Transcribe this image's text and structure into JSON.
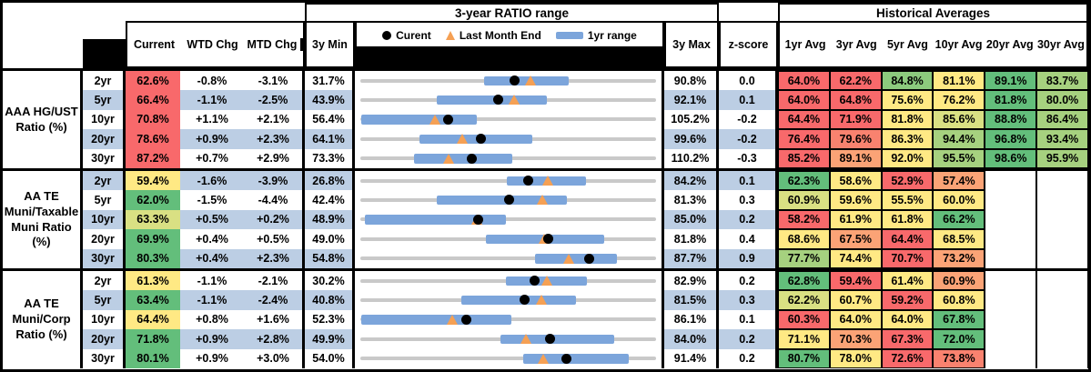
{
  "titles": {
    "range": "3-year RATIO range",
    "historical": "Historical Averages"
  },
  "columns": {
    "current": "Current",
    "wtd": "WTD Chg",
    "mtd": "MTD Chg",
    "min3y": "3y Min",
    "max3y": "3y Max",
    "zscore": "z-score",
    "avgs": [
      "1yr Avg",
      "3yr Avg",
      "5yr Avg",
      "10yr Avg",
      "20yr Avg",
      "30yr Avg"
    ]
  },
  "legend": {
    "current": "Curent",
    "last_month": "Last Month End",
    "range": "1yr range"
  },
  "palette": {
    "red": "#F8696B",
    "redOrange": "#F9826F",
    "orange": "#FBA376",
    "yellow": "#FFE984",
    "yellowGreen": "#D9E083",
    "lightGreen": "#A6D17F",
    "medGreen": "#8CCA7D",
    "green": "#63BE7B",
    "rowBlue": "#BCCEE4",
    "rowWhite": "#FFFFFF",
    "barBlue": "#7CA5DB",
    "trackGray": "#C9C9C9",
    "triOrange": "#F5A054",
    "dotBlack": "#000000"
  },
  "groups": [
    {
      "label": "AAA HG/UST\nRatio (%)",
      "rows": [
        {
          "tenor": "2yr",
          "current": "62.6%",
          "cc": "red",
          "wtd": "-0.8%",
          "mtd": "-3.1%",
          "min": "31.7%",
          "max": "90.8%",
          "z": "0.0",
          "range": {
            "min": 31.7,
            "max": 90.8,
            "lo": 56.4,
            "hi": 73.4,
            "cur": 62.6,
            "last": 65.7
          },
          "avgs": [
            [
              "64.0%",
              "red"
            ],
            [
              "62.2%",
              "red"
            ],
            [
              "84.8%",
              "medGreen"
            ],
            [
              "81.1%",
              "yellow"
            ],
            [
              "89.1%",
              "green"
            ],
            [
              "83.7%",
              "lightGreen"
            ]
          ]
        },
        {
          "tenor": "5yr",
          "current": "66.4%",
          "cc": "red",
          "wtd": "-1.1%",
          "mtd": "-2.5%",
          "min": "43.9%",
          "max": "92.1%",
          "z": "0.1",
          "range": {
            "min": 43.9,
            "max": 92.1,
            "lo": 56.3,
            "hi": 74.3,
            "cur": 66.4,
            "last": 68.9
          },
          "avgs": [
            [
              "64.0%",
              "red"
            ],
            [
              "64.8%",
              "red"
            ],
            [
              "75.6%",
              "yellow"
            ],
            [
              "76.2%",
              "yellow"
            ],
            [
              "81.8%",
              "green"
            ],
            [
              "80.0%",
              "lightGreen"
            ]
          ]
        },
        {
          "tenor": "10yr",
          "current": "70.8%",
          "cc": "red",
          "wtd": "+1.1%",
          "mtd": "+2.1%",
          "min": "56.4%",
          "max": "105.2%",
          "z": "-0.2",
          "range": {
            "min": 56.4,
            "max": 105.2,
            "lo": 56.4,
            "hi": 75.6,
            "cur": 70.8,
            "last": 68.7
          },
          "avgs": [
            [
              "64.4%",
              "red"
            ],
            [
              "71.9%",
              "red"
            ],
            [
              "81.8%",
              "yellow"
            ],
            [
              "85.6%",
              "yellowGreen"
            ],
            [
              "88.8%",
              "green"
            ],
            [
              "86.4%",
              "lightGreen"
            ]
          ]
        },
        {
          "tenor": "20yr",
          "current": "78.6%",
          "cc": "red",
          "wtd": "+0.9%",
          "mtd": "+2.3%",
          "min": "64.1%",
          "max": "99.6%",
          "z": "-0.2",
          "range": {
            "min": 64.1,
            "max": 99.6,
            "lo": 71.2,
            "hi": 84.8,
            "cur": 78.6,
            "last": 76.3
          },
          "avgs": [
            [
              "76.4%",
              "red"
            ],
            [
              "79.6%",
              "redOrange"
            ],
            [
              "86.3%",
              "yellow"
            ],
            [
              "94.4%",
              "lightGreen"
            ],
            [
              "96.8%",
              "green"
            ],
            [
              "93.4%",
              "lightGreen"
            ]
          ]
        },
        {
          "tenor": "30yr",
          "current": "87.2%",
          "cc": "red",
          "wtd": "+0.7%",
          "mtd": "+2.9%",
          "min": "73.3%",
          "max": "110.2%",
          "z": "-0.3",
          "range": {
            "min": 73.3,
            "max": 110.2,
            "lo": 79.9,
            "hi": 92.3,
            "cur": 87.2,
            "last": 84.3
          },
          "avgs": [
            [
              "85.2%",
              "red"
            ],
            [
              "89.1%",
              "orange"
            ],
            [
              "92.0%",
              "yellow"
            ],
            [
              "95.5%",
              "lightGreen"
            ],
            [
              "98.6%",
              "green"
            ],
            [
              "95.9%",
              "lightGreen"
            ]
          ]
        }
      ]
    },
    {
      "label": "AA TE\nMuni/Taxable\nMuni Ratio\n(%)",
      "rows": [
        {
          "tenor": "2yr",
          "current": "59.4%",
          "cc": "yellow",
          "wtd": "-1.6%",
          "mtd": "-3.9%",
          "min": "26.8%",
          "max": "84.2%",
          "z": "0.1",
          "range": {
            "min": 26.8,
            "max": 84.2,
            "lo": 55.2,
            "hi": 70.7,
            "cur": 59.4,
            "last": 63.3
          },
          "avgs": [
            [
              "62.3%",
              "green"
            ],
            [
              "58.6%",
              "yellow"
            ],
            [
              "52.9%",
              "red"
            ],
            [
              "57.4%",
              "orange"
            ],
            null,
            null
          ]
        },
        {
          "tenor": "5yr",
          "current": "62.0%",
          "cc": "green",
          "wtd": "-1.5%",
          "mtd": "-4.4%",
          "min": "42.4%",
          "max": "81.3%",
          "z": "0.3",
          "range": {
            "min": 42.4,
            "max": 81.3,
            "lo": 52.4,
            "hi": 69.6,
            "cur": 62.0,
            "last": 66.4
          },
          "avgs": [
            [
              "60.9%",
              "yellowGreen"
            ],
            [
              "59.6%",
              "yellow"
            ],
            [
              "55.5%",
              "yellow"
            ],
            [
              "60.0%",
              "yellow"
            ],
            null,
            null
          ]
        },
        {
          "tenor": "10yr",
          "current": "63.3%",
          "cc": "yellowGreen",
          "wtd": "+0.5%",
          "mtd": "+0.2%",
          "min": "48.9%",
          "max": "85.0%",
          "z": "0.2",
          "range": {
            "min": 48.9,
            "max": 85.0,
            "lo": 49.4,
            "hi": 66.7,
            "cur": 63.3,
            "last": 63.1
          },
          "avgs": [
            [
              "58.2%",
              "red"
            ],
            [
              "61.9%",
              "yellow"
            ],
            [
              "61.8%",
              "yellow"
            ],
            [
              "66.2%",
              "green"
            ],
            null,
            null
          ]
        },
        {
          "tenor": "20yr",
          "current": "69.9%",
          "cc": "green",
          "wtd": "+0.4%",
          "mtd": "+0.5%",
          "min": "49.0%",
          "max": "81.8%",
          "z": "0.4",
          "range": {
            "min": 49.0,
            "max": 81.8,
            "lo": 62.9,
            "hi": 76.1,
            "cur": 69.9,
            "last": 69.4
          },
          "avgs": [
            [
              "68.6%",
              "yellow"
            ],
            [
              "67.5%",
              "orange"
            ],
            [
              "64.4%",
              "red"
            ],
            [
              "68.5%",
              "yellow"
            ],
            null,
            null
          ]
        },
        {
          "tenor": "30yr",
          "current": "80.3%",
          "cc": "green",
          "wtd": "+0.4%",
          "mtd": "+2.3%",
          "min": "54.8%",
          "max": "87.7%",
          "z": "0.9",
          "range": {
            "min": 54.8,
            "max": 87.7,
            "lo": 74.3,
            "hi": 83.4,
            "cur": 80.3,
            "last": 78.0
          },
          "avgs": [
            [
              "77.7%",
              "lightGreen"
            ],
            [
              "74.4%",
              "yellow"
            ],
            [
              "70.7%",
              "red"
            ],
            [
              "73.2%",
              "orange"
            ],
            null,
            null
          ]
        }
      ]
    },
    {
      "label": "AA TE\nMuni/Corp\nRatio (%)",
      "rows": [
        {
          "tenor": "2yr",
          "current": "61.3%",
          "cc": "yellow",
          "wtd": "-1.1%",
          "mtd": "-2.1%",
          "min": "30.2%",
          "max": "82.9%",
          "z": "0.2",
          "range": {
            "min": 30.2,
            "max": 82.9,
            "lo": 56.2,
            "hi": 70.6,
            "cur": 61.3,
            "last": 63.4
          },
          "avgs": [
            [
              "62.8%",
              "green"
            ],
            [
              "59.4%",
              "red"
            ],
            [
              "61.4%",
              "yellow"
            ],
            [
              "60.9%",
              "orange"
            ],
            null,
            null
          ]
        },
        {
          "tenor": "5yr",
          "current": "63.4%",
          "cc": "green",
          "wtd": "-1.1%",
          "mtd": "-2.4%",
          "min": "40.8%",
          "max": "81.5%",
          "z": "0.3",
          "range": {
            "min": 40.8,
            "max": 81.5,
            "lo": 54.7,
            "hi": 70.5,
            "cur": 63.4,
            "last": 65.8
          },
          "avgs": [
            [
              "62.2%",
              "yellowGreen"
            ],
            [
              "60.7%",
              "yellow"
            ],
            [
              "59.2%",
              "red"
            ],
            [
              "60.8%",
              "yellow"
            ],
            null,
            null
          ]
        },
        {
          "tenor": "10yr",
          "current": "64.4%",
          "cc": "yellow",
          "wtd": "+0.8%",
          "mtd": "+1.6%",
          "min": "52.3%",
          "max": "86.1%",
          "z": "0.1",
          "range": {
            "min": 52.3,
            "max": 86.1,
            "lo": 52.3,
            "hi": 69.6,
            "cur": 64.4,
            "last": 62.8
          },
          "avgs": [
            [
              "60.3%",
              "red"
            ],
            [
              "64.0%",
              "yellow"
            ],
            [
              "64.0%",
              "yellow"
            ],
            [
              "67.8%",
              "green"
            ],
            null,
            null
          ]
        },
        {
          "tenor": "20yr",
          "current": "71.8%",
          "cc": "green",
          "wtd": "+0.9%",
          "mtd": "+2.8%",
          "min": "49.9%",
          "max": "84.0%",
          "z": "0.2",
          "range": {
            "min": 49.9,
            "max": 84.0,
            "lo": 66.1,
            "hi": 79.2,
            "cur": 71.8,
            "last": 69.0
          },
          "avgs": [
            [
              "71.1%",
              "yellow"
            ],
            [
              "70.3%",
              "orange"
            ],
            [
              "67.3%",
              "red"
            ],
            [
              "72.0%",
              "green"
            ],
            null,
            null
          ]
        },
        {
          "tenor": "30yr",
          "current": "80.1%",
          "cc": "green",
          "wtd": "+0.9%",
          "mtd": "+3.0%",
          "min": "54.0%",
          "max": "91.4%",
          "z": "0.2",
          "range": {
            "min": 54.0,
            "max": 91.4,
            "lo": 74.6,
            "hi": 88.0,
            "cur": 80.1,
            "last": 77.1
          },
          "avgs": [
            [
              "80.7%",
              "green"
            ],
            [
              "78.0%",
              "yellow"
            ],
            [
              "72.6%",
              "red"
            ],
            [
              "73.8%",
              "redOrange"
            ],
            null,
            null
          ]
        }
      ]
    }
  ],
  "chart_data": [
    {
      "type": "table",
      "title": "AAA HG/UST Ratio (%)",
      "tenors": [
        "2yr",
        "5yr",
        "10yr",
        "20yr",
        "30yr"
      ],
      "current": [
        62.6,
        66.4,
        70.8,
        78.6,
        87.2
      ],
      "wtd_chg": [
        -0.8,
        -1.1,
        1.1,
        0.9,
        0.7
      ],
      "mtd_chg": [
        -3.1,
        -2.5,
        2.1,
        2.3,
        2.9
      ],
      "min_3y": [
        31.7,
        43.9,
        56.4,
        64.1,
        73.3
      ],
      "max_3y": [
        90.8,
        92.1,
        105.2,
        99.6,
        110.2
      ],
      "z_score": [
        0.0,
        0.1,
        -0.2,
        -0.2,
        -0.3
      ],
      "range_1yr_lo": [
        56.4,
        56.3,
        56.4,
        71.2,
        79.9
      ],
      "range_1yr_hi": [
        73.4,
        74.3,
        75.6,
        84.8,
        92.3
      ],
      "last_month_end": [
        65.7,
        68.9,
        68.7,
        76.3,
        84.3
      ],
      "avg_1yr": [
        64.0,
        64.0,
        64.4,
        76.4,
        85.2
      ],
      "avg_3yr": [
        62.2,
        64.8,
        71.9,
        79.6,
        89.1
      ],
      "avg_5yr": [
        84.8,
        75.6,
        81.8,
        86.3,
        92.0
      ],
      "avg_10yr": [
        81.1,
        76.2,
        85.6,
        94.4,
        95.5
      ],
      "avg_20yr": [
        89.1,
        81.8,
        88.8,
        96.8,
        98.6
      ],
      "avg_30yr": [
        83.7,
        80.0,
        86.4,
        93.4,
        95.9
      ]
    },
    {
      "type": "table",
      "title": "AA TE Muni/Taxable Muni Ratio (%)",
      "tenors": [
        "2yr",
        "5yr",
        "10yr",
        "20yr",
        "30yr"
      ],
      "current": [
        59.4,
        62.0,
        63.3,
        69.9,
        80.3
      ],
      "wtd_chg": [
        -1.6,
        -1.5,
        0.5,
        0.4,
        0.4
      ],
      "mtd_chg": [
        -3.9,
        -4.4,
        0.2,
        0.5,
        2.3
      ],
      "min_3y": [
        26.8,
        42.4,
        48.9,
        49.0,
        54.8
      ],
      "max_3y": [
        84.2,
        81.3,
        85.0,
        81.8,
        87.7
      ],
      "z_score": [
        0.1,
        0.3,
        0.2,
        0.4,
        0.9
      ],
      "range_1yr_lo": [
        55.2,
        52.4,
        49.4,
        62.9,
        74.3
      ],
      "range_1yr_hi": [
        70.7,
        69.6,
        66.7,
        76.1,
        83.4
      ],
      "last_month_end": [
        63.3,
        66.4,
        63.1,
        69.4,
        78.0
      ],
      "avg_1yr": [
        62.3,
        60.9,
        58.2,
        68.6,
        77.7
      ],
      "avg_3yr": [
        58.6,
        59.6,
        61.9,
        67.5,
        74.4
      ],
      "avg_5yr": [
        52.9,
        55.5,
        61.8,
        64.4,
        70.7
      ],
      "avg_10yr": [
        57.4,
        60.0,
        66.2,
        68.5,
        73.2
      ],
      "avg_20yr": [
        null,
        null,
        null,
        null,
        null
      ],
      "avg_30yr": [
        null,
        null,
        null,
        null,
        null
      ]
    },
    {
      "type": "table",
      "title": "AA TE Muni/Corp Ratio (%)",
      "tenors": [
        "2yr",
        "5yr",
        "10yr",
        "20yr",
        "30yr"
      ],
      "current": [
        61.3,
        63.4,
        64.4,
        71.8,
        80.1
      ],
      "wtd_chg": [
        -1.1,
        -1.1,
        0.8,
        0.9,
        0.9
      ],
      "mtd_chg": [
        -2.1,
        -2.4,
        1.6,
        2.8,
        3.0
      ],
      "min_3y": [
        30.2,
        40.8,
        52.3,
        49.9,
        54.0
      ],
      "max_3y": [
        82.9,
        81.5,
        86.1,
        84.0,
        91.4
      ],
      "z_score": [
        0.2,
        0.3,
        0.1,
        0.2,
        0.2
      ],
      "range_1yr_lo": [
        56.2,
        54.7,
        52.3,
        66.1,
        74.6
      ],
      "range_1yr_hi": [
        70.6,
        70.5,
        69.6,
        79.2,
        88.0
      ],
      "last_month_end": [
        63.4,
        65.8,
        62.8,
        69.0,
        77.1
      ],
      "avg_1yr": [
        62.8,
        62.2,
        60.3,
        71.1,
        80.7
      ],
      "avg_3yr": [
        59.4,
        60.7,
        64.0,
        70.3,
        78.0
      ],
      "avg_5yr": [
        61.4,
        59.2,
        64.0,
        67.3,
        72.6
      ],
      "avg_10yr": [
        60.9,
        60.8,
        67.8,
        72.0,
        73.8
      ],
      "avg_20yr": [
        null,
        null,
        null,
        null,
        null
      ],
      "avg_30yr": [
        null,
        null,
        null,
        null,
        null
      ]
    }
  ]
}
